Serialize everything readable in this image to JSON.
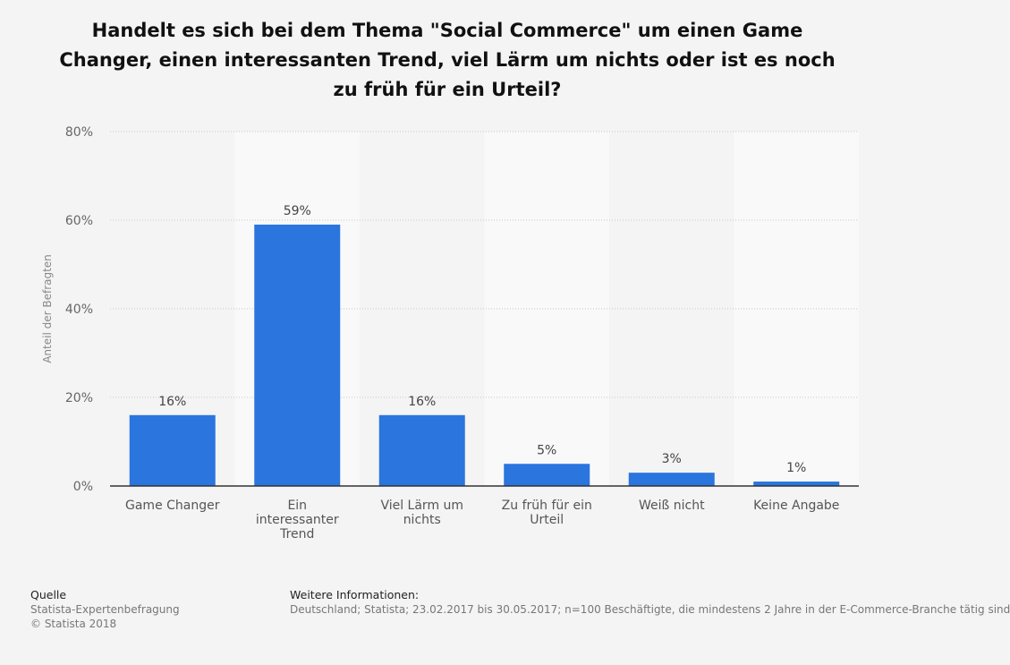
{
  "chart_data": {
    "type": "bar",
    "title": "Handelt es sich bei dem Thema \"Social Commerce\" um einen Game Changer, einen interessanten Trend, viel Lärm um nichts oder ist es noch zu früh für ein Urteil?",
    "ylabel": "Anteil der Befragten",
    "xlabel": "",
    "categories": [
      [
        "Game Changer"
      ],
      [
        "Ein",
        "interessanter",
        "Trend"
      ],
      [
        "Viel Lärm um",
        "nichts"
      ],
      [
        "Zu früh für ein",
        "Urteil"
      ],
      [
        "Weiß nicht"
      ],
      [
        "Keine Angabe"
      ]
    ],
    "values": [
      16,
      59,
      16,
      5,
      3,
      1
    ],
    "data_labels": [
      "16%",
      "59%",
      "16%",
      "5%",
      "3%",
      "1%"
    ],
    "ylim": [
      0,
      80
    ],
    "yticks": [
      0,
      20,
      40,
      60,
      80
    ],
    "ytick_labels": [
      "0%",
      "20%",
      "40%",
      "60%",
      "80%"
    ],
    "grid": true,
    "bar_color": "#2a75de"
  },
  "footer": {
    "source_heading": "Quelle",
    "source_text": "Statista-Expertenbefragung",
    "copyright": "© Statista 2018",
    "info_heading": "Weitere Informationen:",
    "info_text": "Deutschland; Statista; 23.02.2017 bis 30.05.2017; n=100 Beschäftigte, die mindestens 2 Jahre in der E-Commerce-Branche tätig sind"
  }
}
